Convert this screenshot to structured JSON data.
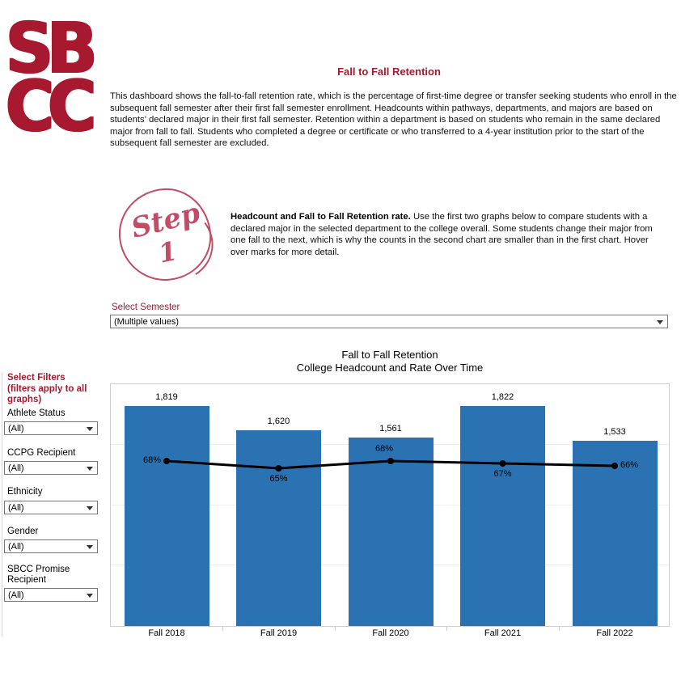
{
  "colors": {
    "brand": "#A6192E",
    "rose": "#C24B66",
    "bar": "#2B72B3",
    "line": "#000000"
  },
  "brand": {
    "logo_line1": "SB",
    "logo_line2": "CC"
  },
  "header": {
    "title": "Fall to Fall Retention",
    "description": "This dashboard shows the fall-to-fall retention rate, which is the percentage of first-time degree or transfer seeking students who enroll in the subsequent fall semester after their first fall semester enrollment. Headcounts within pathways, departments, and majors are based on students' declared major in their first fall semester. Retention within a department is based on students who remain in the same declared major from fall to fall. Students who completed a degree or certificate or who transferred to a 4-year institution prior to the start of the subsequent fall semester are excluded."
  },
  "step": {
    "badge_word": "Step",
    "badge_number": "1",
    "bold_lead": "Headcount and Fall to Fall Retention rate.",
    "text": " Use the first two graphs below to compare students with a declared major in the selected department to the college overall. Some students change their major from one fall to the next, which is why the counts in the second chart are smaller than in the first chart. Hover over marks for more detail."
  },
  "semester_filter": {
    "label": "Select Semester",
    "value": "(Multiple values)"
  },
  "sidebar": {
    "title_line1": "Select Filters",
    "title_line2": "(filters apply to all graphs)",
    "filters": [
      {
        "label": "Athlete Status",
        "value": "(All)"
      },
      {
        "label": "CCPG Recipient",
        "value": "(All)"
      },
      {
        "label": "Ethnicity",
        "value": "(All)"
      },
      {
        "label": "Gender",
        "value": "(All)"
      },
      {
        "label": "SBCC Promise Recipient",
        "value": "(All)"
      }
    ]
  },
  "chart_data": {
    "type": "bar",
    "title": "Fall to Fall Retention",
    "subtitle": "College Headcount and Rate Over Time",
    "categories": [
      "Fall 2018",
      "Fall 2019",
      "Fall 2020",
      "Fall 2021",
      "Fall 2022"
    ],
    "series": [
      {
        "name": "College Headcount",
        "type": "bar",
        "values": [
          1819,
          1620,
          1561,
          1822,
          1533
        ],
        "labels": [
          "1,819",
          "1,620",
          "1,561",
          "1,822",
          "1,533"
        ]
      },
      {
        "name": "Fall to Fall Retention Rate",
        "type": "line",
        "values": [
          68,
          65,
          68,
          67,
          66
        ],
        "labels": [
          "68%",
          "65%",
          "68%",
          "67%",
          "66%"
        ]
      }
    ],
    "ylim": [
      0,
      2000
    ],
    "y2lim": [
      0,
      100
    ],
    "grid_step": 500,
    "legend": "none",
    "gridlines": true
  }
}
